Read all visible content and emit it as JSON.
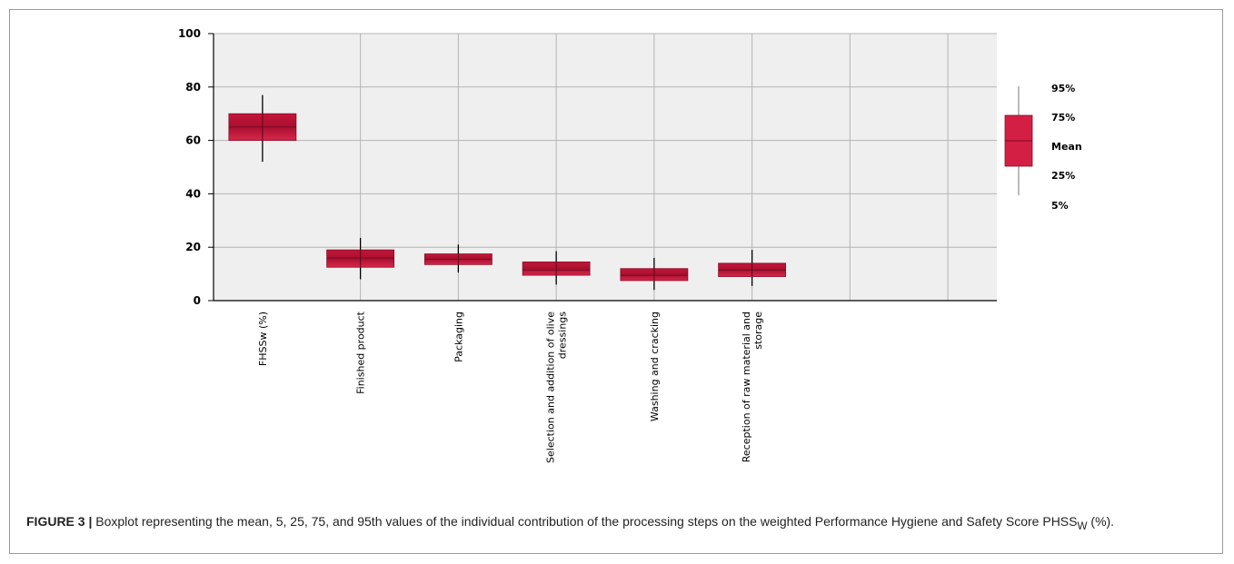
{
  "chart_data": {
    "type": "boxplot",
    "ylim": [
      0,
      100
    ],
    "yticks": [
      0,
      20,
      40,
      60,
      80,
      100
    ],
    "grid": true,
    "legend_position": "right",
    "box_color": "#d41f45",
    "categories": [
      {
        "label_lines": [
          "FHSSw (%)"
        ],
        "p5": 52,
        "p25": 60,
        "mean": 65,
        "p75": 70,
        "p95": 77
      },
      {
        "label_lines": [
          "Finished product"
        ],
        "p5": 8,
        "p25": 12.5,
        "mean": 16,
        "p75": 19,
        "p95": 23.5
      },
      {
        "label_lines": [
          "Packaging"
        ],
        "p5": 10.5,
        "p25": 13.5,
        "mean": 15.5,
        "p75": 17.5,
        "p95": 21
      },
      {
        "label_lines": [
          "Selection and addition of olive",
          "dressings"
        ],
        "p5": 6,
        "p25": 9.5,
        "mean": 11.5,
        "p75": 14.5,
        "p95": 18.5
      },
      {
        "label_lines": [
          "Washing and cracking"
        ],
        "p5": 4,
        "p25": 7.5,
        "mean": 9.5,
        "p75": 12,
        "p95": 16
      },
      {
        "label_lines": [
          "Reception of raw material and",
          "storage"
        ],
        "p5": 5.5,
        "p25": 9,
        "mean": 11.5,
        "p75": 14,
        "p95": 19
      }
    ],
    "legend": {
      "labels": [
        "95%",
        "75%",
        "Mean",
        "25%",
        "5%"
      ]
    }
  },
  "caption": {
    "label": "FIGURE 3 |",
    "text_before_sub": " Boxplot representing the mean, 5, 25, 75, and 95th values of the individual contribution of the processing steps on the weighted Performance Hygiene and Safety Score PHSS",
    "subscript": "W",
    "text_after_sub": " (%)."
  }
}
